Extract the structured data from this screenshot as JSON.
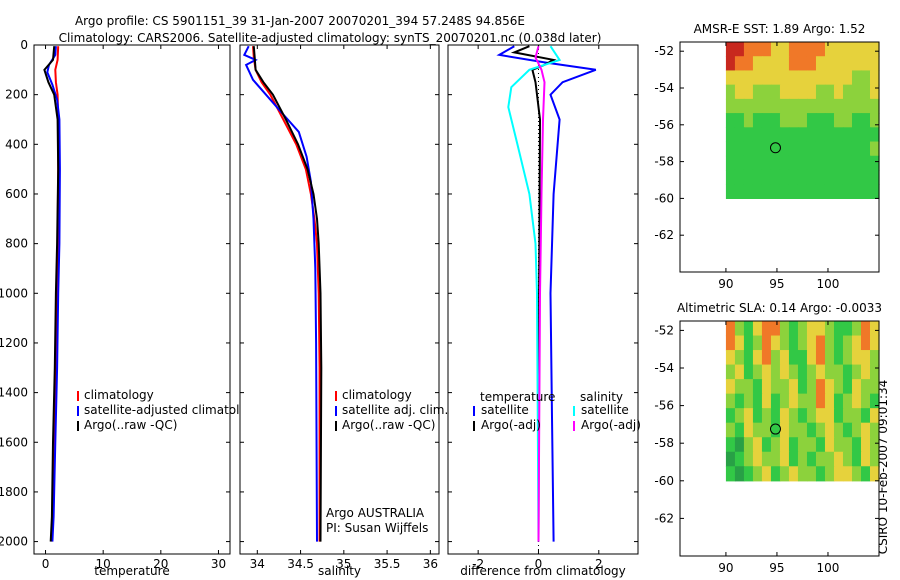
{
  "figure": {
    "title_line1": "Argo profile: CS 5901151_39 31-Jan-2007 20070201_394 57.248S 94.856E",
    "title_line2": "Climatology: CARS2006. Satellite-adjusted climatology: synTS_20070201.nc (0.038d later)",
    "credit": "CSIRO 10-Feb-2007 09:01:34"
  },
  "colors": {
    "climatology": "#ff0000",
    "satellite": "#0000ff",
    "argo": "#000000",
    "salinity_satellite": "#00ffff",
    "salinity_argo": "#ff00ff"
  },
  "chart_data": [
    {
      "type": "line",
      "id": "temperature",
      "xlabel": "temperature",
      "ylabel": "",
      "xlim": [
        -2,
        32
      ],
      "ylim": [
        2050,
        0
      ],
      "xticks": [
        0,
        10,
        20,
        30
      ],
      "xtick_labels": [
        "0",
        "10",
        "20",
        "30"
      ],
      "yticks": [
        0,
        200,
        400,
        600,
        800,
        1000,
        1200,
        1400,
        1600,
        1800,
        2000
      ],
      "ytick_labels": [
        "0",
        "200",
        "400",
        "600",
        "800",
        "1000",
        "1200",
        "1400",
        "1600",
        "1800",
        "2000"
      ],
      "legend": [
        "climatology",
        "satellite-adjusted climatolog",
        "Argo(..raw -QC)"
      ],
      "series": [
        {
          "name": "climatology",
          "color_key": "climatology",
          "points": [
            [
              2.2,
              5
            ],
            [
              2.1,
              60
            ],
            [
              1.7,
              100
            ],
            [
              1.8,
              150
            ],
            [
              2.1,
              200
            ],
            [
              2.2,
              300
            ],
            [
              2.2,
              500
            ],
            [
              2.1,
              800
            ],
            [
              2.0,
              1000
            ],
            [
              1.8,
              1300
            ],
            [
              1.6,
              1600
            ],
            [
              1.3,
              1900
            ],
            [
              1.1,
              2000
            ]
          ]
        },
        {
          "name": "satellite-adjusted climatology",
          "color_key": "satellite",
          "points": [
            [
              1.8,
              5
            ],
            [
              1.7,
              40
            ],
            [
              0.6,
              80
            ],
            [
              0.3,
              110
            ],
            [
              1.2,
              160
            ],
            [
              2.0,
              220
            ],
            [
              2.4,
              300
            ],
            [
              2.5,
              500
            ],
            [
              2.4,
              800
            ],
            [
              2.2,
              1000
            ],
            [
              2.0,
              1300
            ],
            [
              1.7,
              1600
            ],
            [
              1.4,
              1900
            ],
            [
              1.2,
              2000
            ]
          ]
        },
        {
          "name": "Argo(..raw -QC)",
          "color_key": "argo",
          "points": [
            [
              1.5,
              5
            ],
            [
              1.3,
              60
            ],
            [
              -0.2,
              100
            ],
            [
              0.5,
              150
            ],
            [
              1.5,
              200
            ],
            [
              2.1,
              300
            ],
            [
              2.2,
              500
            ],
            [
              2.0,
              800
            ],
            [
              1.8,
              1000
            ],
            [
              1.6,
              1300
            ],
            [
              1.3,
              1600
            ],
            [
              1.1,
              1900
            ],
            [
              0.9,
              2000
            ]
          ]
        }
      ]
    },
    {
      "type": "line",
      "id": "salinity",
      "xlabel": "salinity",
      "ylabel": "",
      "xlim": [
        33.8,
        36.1
      ],
      "ylim": [
        2050,
        0
      ],
      "xticks": [
        34,
        34.5,
        35,
        35.5,
        36
      ],
      "xtick_labels": [
        "34",
        "34.5",
        "35",
        "35.5",
        "36"
      ],
      "legend": [
        "climatology",
        "satellite adj. clim.",
        "Argo(..raw -QC)"
      ],
      "annotation": [
        "Argo AUSTRALIA",
        "PI: Susan Wijffels"
      ],
      "series": [
        {
          "name": "climatology",
          "color_key": "climatology",
          "points": [
            [
              33.95,
              5
            ],
            [
              33.96,
              50
            ],
            [
              33.98,
              100
            ],
            [
              34.05,
              150
            ],
            [
              34.15,
              200
            ],
            [
              34.3,
              300
            ],
            [
              34.45,
              400
            ],
            [
              34.56,
              500
            ],
            [
              34.62,
              600
            ],
            [
              34.66,
              700
            ],
            [
              34.69,
              800
            ],
            [
              34.71,
              1000
            ],
            [
              34.72,
              1300
            ],
            [
              34.72,
              2000
            ]
          ]
        },
        {
          "name": "satellite adj. clim.",
          "color_key": "satellite",
          "points": [
            [
              33.9,
              5
            ],
            [
              33.85,
              40
            ],
            [
              33.98,
              60
            ],
            [
              33.87,
              80
            ],
            [
              33.95,
              140
            ],
            [
              34.1,
              200
            ],
            [
              34.3,
              280
            ],
            [
              34.48,
              350
            ],
            [
              34.57,
              450
            ],
            [
              34.62,
              550
            ],
            [
              34.65,
              700
            ],
            [
              34.67,
              900
            ],
            [
              34.68,
              1200
            ],
            [
              34.69,
              2000
            ]
          ]
        },
        {
          "name": "Argo(..raw -QC)",
          "color_key": "argo",
          "points": [
            [
              33.96,
              5
            ],
            [
              33.97,
              50
            ],
            [
              33.98,
              100
            ],
            [
              34.07,
              150
            ],
            [
              34.18,
              200
            ],
            [
              34.33,
              300
            ],
            [
              34.47,
              400
            ],
            [
              34.58,
              500
            ],
            [
              34.65,
              600
            ],
            [
              34.69,
              700
            ],
            [
              34.71,
              800
            ],
            [
              34.73,
              1000
            ],
            [
              34.74,
              1300
            ],
            [
              34.73,
              2000
            ]
          ]
        }
      ]
    },
    {
      "type": "line",
      "id": "difference",
      "xlabel": "difference from climatology",
      "ylabel": "",
      "xlim": [
        -3,
        3.3
      ],
      "ylim": [
        2050,
        0
      ],
      "xticks": [
        -2,
        0,
        2
      ],
      "xtick_labels": [
        "-2",
        "0",
        "2"
      ],
      "legend_temperature_title": "temperature",
      "legend_salinity_title": "salinity",
      "legend": [
        "satellite",
        "Argo(-adj)",
        "satellite",
        "Argo(-adj)"
      ],
      "series": [
        {
          "name": "temperature satellite",
          "color_key": "satellite",
          "points": [
            [
              -0.8,
              5
            ],
            [
              -1.3,
              40
            ],
            [
              0.2,
              70
            ],
            [
              1.9,
              100
            ],
            [
              0.8,
              150
            ],
            [
              0.4,
              200
            ],
            [
              0.7,
              300
            ],
            [
              0.5,
              600
            ],
            [
              0.4,
              1000
            ],
            [
              0.45,
              1500
            ],
            [
              0.5,
              2000
            ]
          ]
        },
        {
          "name": "temperature Argo(-adj)",
          "color_key": "argo",
          "points": [
            [
              -0.3,
              5
            ],
            [
              -0.8,
              30
            ],
            [
              0.5,
              60
            ],
            [
              0.2,
              80
            ],
            [
              -0.2,
              100
            ],
            [
              -0.1,
              150
            ],
            [
              0.05,
              300
            ],
            [
              0.02,
              1000
            ],
            [
              0.0,
              2000
            ]
          ]
        },
        {
          "name": "salinity satellite",
          "color_key": "salinity_satellite",
          "points": [
            [
              0.4,
              5
            ],
            [
              0.7,
              60
            ],
            [
              -0.3,
              100
            ],
            [
              -0.9,
              170
            ],
            [
              -1.0,
              250
            ],
            [
              -0.7,
              400
            ],
            [
              -0.3,
              600
            ],
            [
              -0.1,
              800
            ],
            [
              -0.05,
              1000
            ],
            [
              0.0,
              2000
            ]
          ]
        },
        {
          "name": "salinity Argo(-adj)",
          "color_key": "salinity_argo",
          "points": [
            [
              0.0,
              5
            ],
            [
              -0.1,
              50
            ],
            [
              0.1,
              100
            ],
            [
              0.2,
              150
            ],
            [
              0.15,
              300
            ],
            [
              0.1,
              600
            ],
            [
              0.05,
              1000
            ],
            [
              0.0,
              2000
            ]
          ]
        }
      ]
    },
    {
      "type": "heatmap",
      "id": "amsre_sst",
      "title": "AMSR-E SST: 1.89 Argo: 1.52",
      "xlim": [
        85.5,
        105
      ],
      "ylim": [
        -64,
        -51.5
      ],
      "data_lon_range": [
        90,
        105
      ],
      "data_lat_range": [
        -60,
        -51.5
      ],
      "xticks": [
        90,
        95,
        100
      ],
      "xtick_labels": [
        "90",
        "95",
        "100"
      ],
      "yticks": [
        -52,
        -54,
        -56,
        -58,
        -60,
        -62
      ],
      "ytick_labels": [
        "-52",
        "-54",
        "-56",
        "-58",
        "-60",
        "-62"
      ],
      "marker": {
        "lon": 94.856,
        "lat": -57.248
      },
      "rows": [
        "RROOOYYOOOOYYYYYY",
        "ROOYYYYOOOYYYYYYY",
        "YYYYYYYYYYYYYYLLY",
        "LYYLLLYYYYLLYLLLY",
        "LLLLLLLLLLLLLLLLL",
        "GGLGGGLLLGGGLLGGL",
        "GGGGGGGGGGGGGGGGG",
        "GGGGGGGGGGGGGGGGL",
        "GGGGGGGGGGGGGGGGG",
        "GGGGGGGGGGGGGGGGG",
        "GGGGGGGGGGGGGGGGG"
      ],
      "palette": {
        "R": "#c8281e",
        "O": "#f07828",
        "Y": "#e6d23c",
        "L": "#8cd23c",
        "G": "#32c846",
        "D": "#28a046"
      }
    },
    {
      "type": "heatmap",
      "id": "altimetric_sla",
      "title": "Altimetric SLA: 0.14 Argo: -0.0033",
      "xlim": [
        85.5,
        105
      ],
      "ylim": [
        -64,
        -51.5
      ],
      "data_lon_range": [
        90,
        105
      ],
      "data_lat_range": [
        -60,
        -51.5
      ],
      "xticks": [
        90,
        95,
        100
      ],
      "xtick_labels": [
        "90",
        "95",
        "100"
      ],
      "yticks": [
        -52,
        -54,
        -56,
        -58,
        -60,
        -62
      ],
      "ytick_labels": [
        "-52",
        "-54",
        "-56",
        "-58",
        "-60",
        "-62"
      ],
      "marker": {
        "lon": 94.856,
        "lat": -57.248
      },
      "rows": [
        "OLGYOOLGLYYLGGLOY",
        "OYGLOYLGLYOLGLYOY",
        "YLGYOLYGGYOLGLYYL",
        "LYGLYLYLGLYLLGLYL",
        "YLLGYLLYGLOYLGYLL",
        "LGLGYGLYLLOYGLYLG",
        "GLYGLGYLGLYYGLLGY",
        "LGYLLGYLLGLYLGLYL",
        "GDLYGLYGLLGYLLGYL",
        "DGLYLLYGLGLLYLGYL",
        "GDGLYGLYLLGLYYLGY"
      ],
      "palette": {
        "R": "#c8281e",
        "O": "#f07828",
        "Y": "#e6d23c",
        "L": "#8cd23c",
        "G": "#32c846",
        "D": "#28a046"
      }
    }
  ]
}
